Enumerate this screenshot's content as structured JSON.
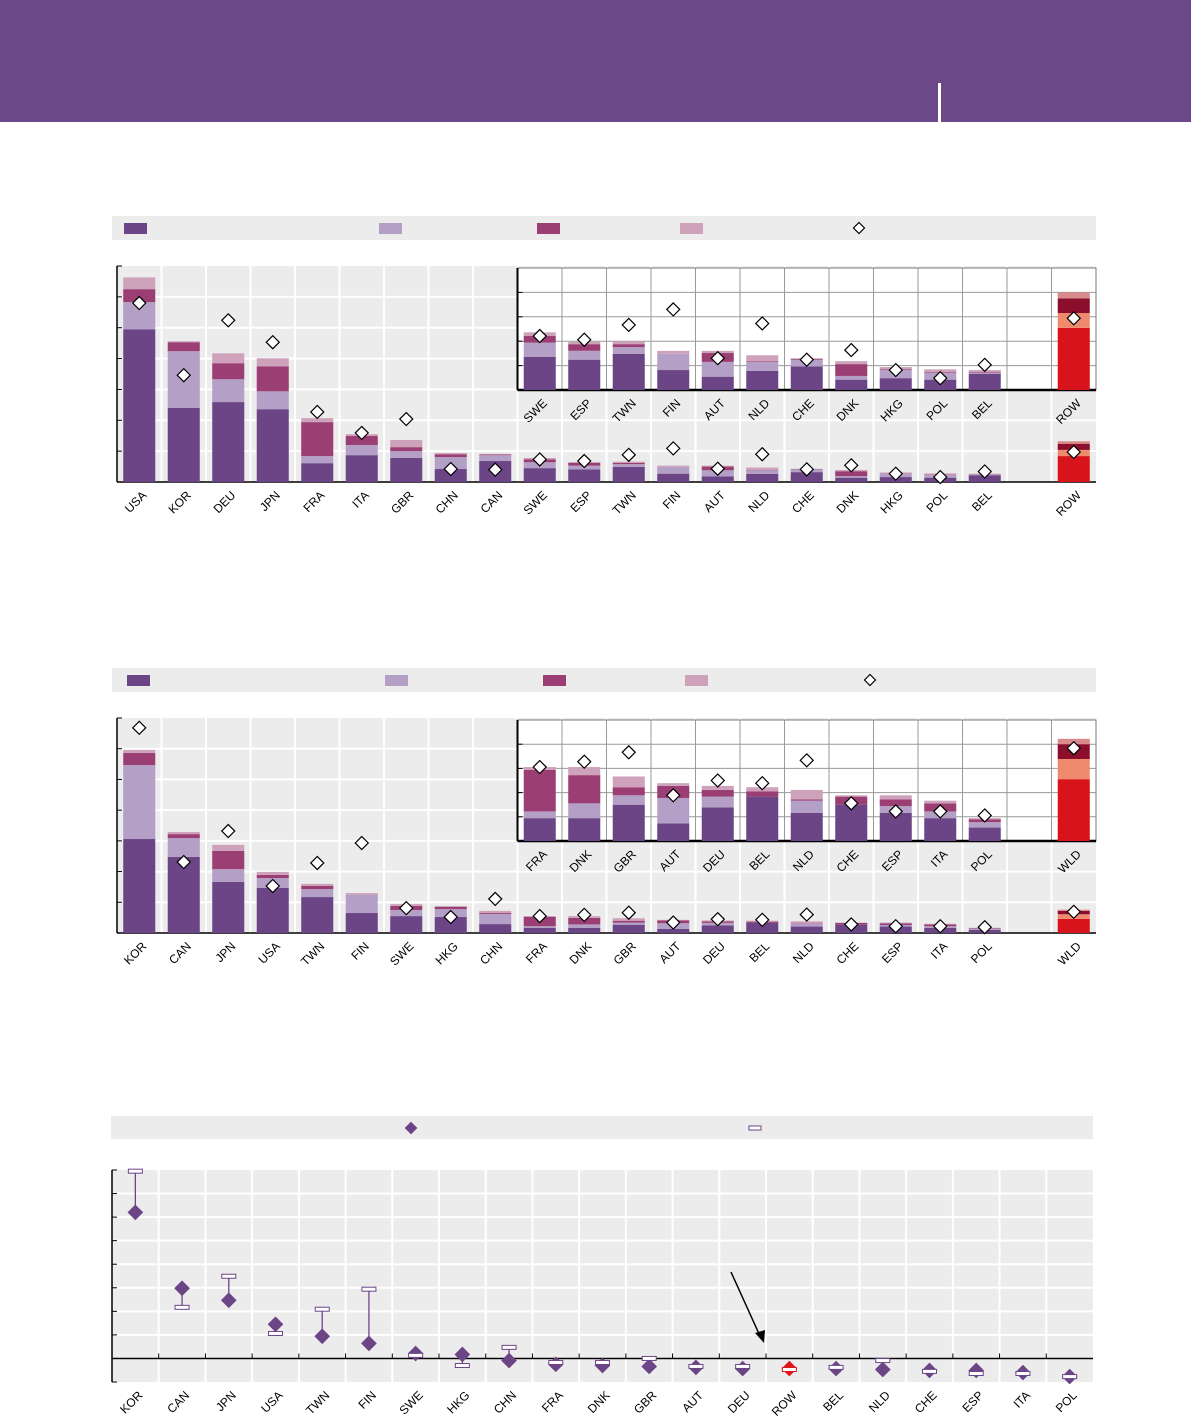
{
  "header": {
    "color": "#6d4889"
  },
  "colors": {
    "stack": [
      "#6c4587",
      "#b49fc6",
      "#9a3e73",
      "#cda2ba"
    ],
    "stack_total": [
      "#d7141b",
      "#ef8a6f",
      "#8c0e2d",
      "#d98a8a"
    ],
    "grid_bg": "#ececec",
    "accent": "#6c4587",
    "highlight": "#e0161c"
  },
  "chart_data": [
    {
      "type": "bar",
      "stacked": true,
      "categories": [
        "USA",
        "KOR",
        "DEU",
        "JPN",
        "FRA",
        "ITA",
        "GBR",
        "CHN",
        "CAN",
        "SWE",
        "ESP",
        "TWN",
        "FIN",
        "AUT",
        "NLD",
        "CHE",
        "DNK",
        "HKG",
        "POL",
        "BEL",
        "ROW"
      ],
      "series": [
        {
          "values": [
            4.95,
            2.4,
            2.59,
            2.36,
            0.61,
            0.87,
            0.78,
            0.42,
            0.68,
            0.45,
            0.41,
            0.49,
            0.27,
            0.18,
            0.26,
            0.32,
            0.14,
            0.16,
            0.14,
            0.22,
            0.84
          ]
        },
        {
          "values": [
            0.88,
            1.84,
            0.74,
            0.58,
            0.23,
            0.33,
            0.22,
            0.39,
            0.19,
            0.19,
            0.12,
            0.09,
            0.22,
            0.2,
            0.12,
            0.09,
            0.05,
            0.11,
            0.09,
            0.01,
            0.2
          ]
        },
        {
          "values": [
            0.42,
            0.29,
            0.52,
            0.81,
            1.1,
            0.29,
            0.13,
            0.09,
            0.02,
            0.09,
            0.09,
            0.04,
            0.0,
            0.12,
            0.01,
            0.01,
            0.16,
            0.01,
            0.01,
            0.01,
            0.2
          ]
        },
        {
          "values": [
            0.38,
            0.03,
            0.32,
            0.26,
            0.13,
            0.06,
            0.23,
            0.04,
            0.02,
            0.05,
            0.03,
            0.04,
            0.04,
            0.03,
            0.08,
            0.01,
            0.04,
            0.03,
            0.04,
            0.03,
            0.08
          ]
        }
      ],
      "markers": [
        5.8,
        3.46,
        5.24,
        4.53,
        2.27,
        1.59,
        2.04,
        0.42,
        0.4,
        0.73,
        0.68,
        0.88,
        1.09,
        0.43,
        0.9,
        0.41,
        0.54,
        0.27,
        0.16,
        0.34,
        0.97
      ],
      "ylim": [
        0,
        7
      ],
      "inset": {
        "from_category": "SWE",
        "ylim": [
          0,
          1.65
        ]
      },
      "legend": "top"
    },
    {
      "type": "bar",
      "stacked": true,
      "categories": [
        "KOR",
        "CAN",
        "JPN",
        "USA",
        "TWN",
        "FIN",
        "SWE",
        "HKG",
        "CHN",
        "FRA",
        "DNK",
        "GBR",
        "AUT",
        "DEU",
        "BEL",
        "NLD",
        "CHE",
        "ESP",
        "ITA",
        "POL",
        "WLD"
      ],
      "series": [
        {
          "values": [
            3.06,
            2.48,
            1.66,
            1.47,
            1.17,
            0.65,
            0.55,
            0.52,
            0.29,
            0.17,
            0.17,
            0.27,
            0.13,
            0.25,
            0.33,
            0.21,
            0.27,
            0.21,
            0.17,
            0.1,
            0.46
          ]
        },
        {
          "values": [
            2.41,
            0.61,
            0.42,
            0.32,
            0.26,
            0.59,
            0.2,
            0.26,
            0.33,
            0.05,
            0.11,
            0.07,
            0.19,
            0.08,
            0.0,
            0.09,
            0.0,
            0.05,
            0.05,
            0.04,
            0.15
          ]
        },
        {
          "values": [
            0.39,
            0.13,
            0.59,
            0.1,
            0.1,
            0.0,
            0.13,
            0.07,
            0.03,
            0.31,
            0.21,
            0.06,
            0.09,
            0.05,
            0.04,
            0.01,
            0.06,
            0.05,
            0.06,
            0.02,
            0.11
          ]
        },
        {
          "values": [
            0.1,
            0.07,
            0.2,
            0.1,
            0.07,
            0.06,
            0.06,
            0.03,
            0.07,
            0.02,
            0.06,
            0.08,
            0.02,
            0.03,
            0.03,
            0.07,
            0.01,
            0.03,
            0.02,
            0.01,
            0.04
          ]
        }
      ],
      "markers": [
        6.68,
        2.31,
        3.32,
        1.53,
        2.28,
        2.93,
        0.81,
        0.52,
        1.11,
        0.55,
        0.59,
        0.66,
        0.34,
        0.45,
        0.43,
        0.6,
        0.28,
        0.22,
        0.22,
        0.19,
        0.69
      ],
      "ylim": [
        0,
        7
      ],
      "inset": {
        "from_category": "FRA",
        "ylim": [
          0,
          0.9
        ]
      },
      "legend": "top"
    },
    {
      "type": "scatter",
      "categories": [
        "KOR",
        "CAN",
        "JPN",
        "USA",
        "TWN",
        "FIN",
        "SWE",
        "HKG",
        "CHN",
        "FRA",
        "DNK",
        "GBR",
        "AUT",
        "DEU",
        "ROW",
        "BEL",
        "NLD",
        "CHE",
        "ESP",
        "ITA",
        "POL"
      ],
      "series": [
        {
          "marker": "diamond",
          "values": [
            6.2,
            2.98,
            2.47,
            1.45,
            0.94,
            0.64,
            0.21,
            0.17,
            -0.09,
            -0.25,
            -0.3,
            -0.34,
            -0.38,
            -0.43,
            -0.43,
            -0.43,
            -0.47,
            -0.51,
            -0.51,
            -0.6,
            -0.77
          ]
        },
        {
          "marker": "bar",
          "values": [
            7.95,
            2.17,
            3.49,
            1.06,
            2.09,
            2.94,
            0.13,
            -0.3,
            0.47,
            -0.17,
            -0.17,
            0.0,
            -0.34,
            -0.34,
            -0.47,
            -0.38,
            -0.09,
            -0.55,
            -0.64,
            -0.64,
            -0.77
          ]
        }
      ],
      "highlight_category": "ROW",
      "annotation": {
        "type": "arrow",
        "points_to": "DEU"
      },
      "ylim": [
        -1,
        8
      ],
      "legend": "top"
    }
  ]
}
